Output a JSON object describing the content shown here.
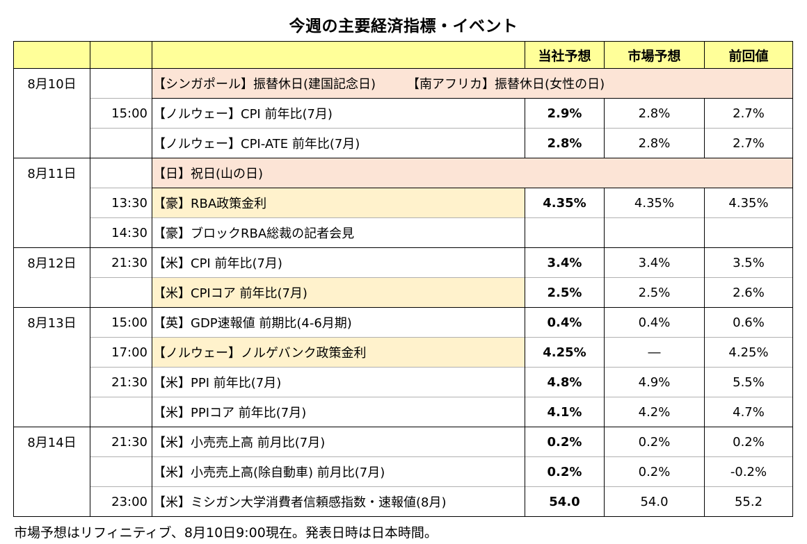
{
  "title": "今週の主要経済指標・イベント",
  "headers": {
    "date": "",
    "time": "",
    "event": "",
    "ours": "当社予想",
    "market": "市場予想",
    "previous": "前回値"
  },
  "colors": {
    "header": "#ffff99",
    "holiday": "#fce4d6",
    "highlight": "#fff2cc",
    "normal": "#ffffff"
  },
  "rows": [
    {
      "date": "8月10日",
      "time": "",
      "event": "【シンガポール】振替休日(建国記念日)　　　【南アフリカ】振替休日(女性の日)",
      "ours": "",
      "market": "",
      "previous": "",
      "kind": "holiday",
      "group_start": true
    },
    {
      "date": "",
      "time": "15:00",
      "event": "【ノルウェー】CPI 前年比(7月)",
      "ours": "2.9%",
      "market": "2.8%",
      "previous": "2.7%",
      "kind": "normal"
    },
    {
      "date": "",
      "time": "",
      "event": "【ノルウェー】CPI-ATE 前年比(7月)",
      "ours": "2.8%",
      "market": "2.8%",
      "previous": "2.7%",
      "kind": "normal"
    },
    {
      "date": "8月11日",
      "time": "",
      "event": "【日】祝日(山の日)",
      "ours": "",
      "market": "",
      "previous": "",
      "kind": "holiday",
      "group_start": true
    },
    {
      "date": "",
      "time": "13:30",
      "event": "【豪】RBA政策金利",
      "ours": "4.35%",
      "market": "4.35%",
      "previous": "4.35%",
      "kind": "highlight"
    },
    {
      "date": "",
      "time": "14:30",
      "event": "【豪】ブロックRBA総裁の記者会見",
      "ours": "",
      "market": "",
      "previous": "",
      "kind": "normal"
    },
    {
      "date": "8月12日",
      "time": "21:30",
      "event": "【米】CPI 前年比(7月)",
      "ours": "3.4%",
      "market": "3.4%",
      "previous": "3.5%",
      "kind": "normal",
      "group_start": true
    },
    {
      "date": "",
      "time": "",
      "event": "【米】CPIコア 前年比(7月)",
      "ours": "2.5%",
      "market": "2.5%",
      "previous": "2.6%",
      "kind": "highlight"
    },
    {
      "date": "8月13日",
      "time": "15:00",
      "event": "【英】GDP速報値 前期比(4-6月期)",
      "ours": "0.4%",
      "market": "0.4%",
      "previous": "0.6%",
      "kind": "normal",
      "group_start": true
    },
    {
      "date": "",
      "time": "17:00",
      "event": "【ノルウェー】ノルゲバンク政策金利",
      "ours": "4.25%",
      "market": "―",
      "previous": "4.25%",
      "kind": "highlight"
    },
    {
      "date": "",
      "time": "21:30",
      "event": "【米】PPI 前年比(7月)",
      "ours": "4.8%",
      "market": "4.9%",
      "previous": "5.5%",
      "kind": "normal"
    },
    {
      "date": "",
      "time": "",
      "event": "【米】PPIコア 前年比(7月)",
      "ours": "4.1%",
      "market": "4.2%",
      "previous": "4.7%",
      "kind": "normal"
    },
    {
      "date": "8月14日",
      "time": "21:30",
      "event": "【米】小売売上高 前月比(7月)",
      "ours": "0.2%",
      "market": "0.2%",
      "previous": "0.2%",
      "kind": "normal",
      "group_start": true
    },
    {
      "date": "",
      "time": "",
      "event": "【米】小売売上高(除自動車) 前月比(7月)",
      "ours": "0.2%",
      "market": "0.2%",
      "previous": "-0.2%",
      "kind": "normal"
    },
    {
      "date": "",
      "time": "23:00",
      "event": "【米】ミシガン大学消費者信頼感指数・速報値(8月)",
      "ours": "54.0",
      "market": "54.0",
      "previous": "55.2",
      "kind": "normal"
    }
  ],
  "footnote": "市場予想はリフィニティブ、8月10日9:00現在。発表日時は日本時間。"
}
